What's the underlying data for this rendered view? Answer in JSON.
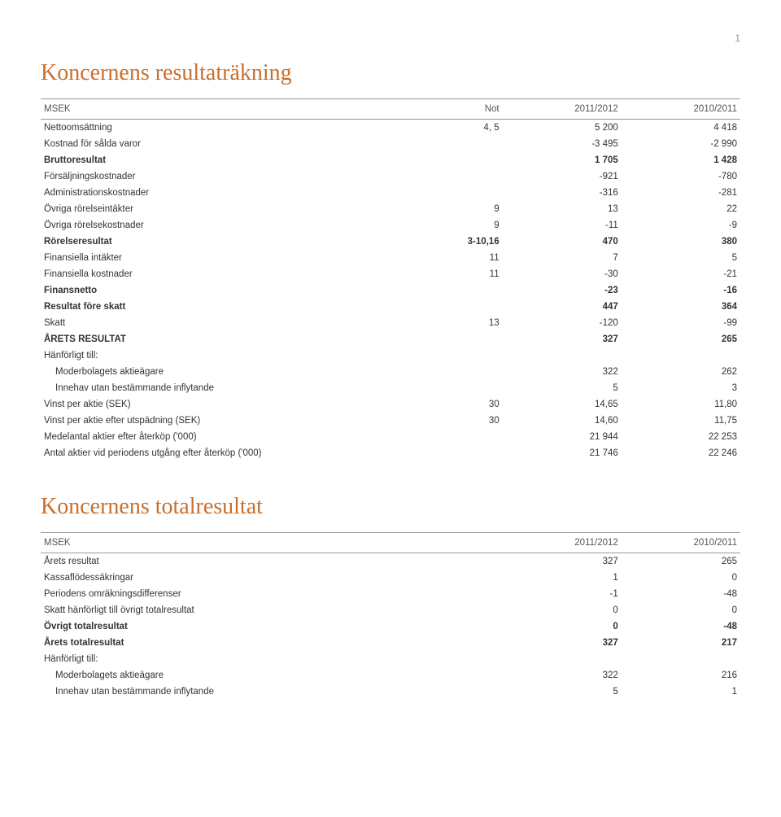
{
  "page_number": "1",
  "colors": {
    "heading": "#c96f2c",
    "text": "#333333",
    "rule": "#999999",
    "background": "#ffffff"
  },
  "fonts": {
    "heading_family": "Georgia, 'Times New Roman', serif",
    "body_family": "Verdana, Geneva, sans-serif",
    "heading_size_pt": 28,
    "body_size_pt": 11.5
  },
  "section1": {
    "title": "Koncernens resultaträkning",
    "columns": [
      "MSEK",
      "Not",
      "2011/2012",
      "2010/2011"
    ],
    "rows": [
      {
        "label": "Nettoomsättning",
        "not": "4, 5",
        "y1": "5 200",
        "y2": "4 418",
        "bold": false
      },
      {
        "label": "Kostnad för sålda varor",
        "not": "",
        "y1": "-3 495",
        "y2": "-2 990",
        "bold": false
      },
      {
        "label": "Bruttoresultat",
        "not": "",
        "y1": "1 705",
        "y2": "1 428",
        "bold": true
      },
      {
        "label": "Försäljningskostnader",
        "not": "",
        "y1": "-921",
        "y2": "-780",
        "bold": false
      },
      {
        "label": "Administrationskostnader",
        "not": "",
        "y1": "-316",
        "y2": "-281",
        "bold": false
      },
      {
        "label": "Övriga rörelseintäkter",
        "not": "9",
        "y1": "13",
        "y2": "22",
        "bold": false
      },
      {
        "label": "Övriga rörelsekostnader",
        "not": "9",
        "y1": "-11",
        "y2": "-9",
        "bold": false
      },
      {
        "label": "Rörelseresultat",
        "not": "3-10,16",
        "y1": "470",
        "y2": "380",
        "bold": true
      },
      {
        "label": "Finansiella intäkter",
        "not": "11",
        "y1": "7",
        "y2": "5",
        "bold": false
      },
      {
        "label": "Finansiella kostnader",
        "not": "11",
        "y1": "-30",
        "y2": "-21",
        "bold": false
      },
      {
        "label": "Finansnetto",
        "not": "",
        "y1": "-23",
        "y2": "-16",
        "bold": true
      },
      {
        "label": "Resultat före skatt",
        "not": "",
        "y1": "447",
        "y2": "364",
        "bold": true
      },
      {
        "label": "Skatt",
        "not": "13",
        "y1": "-120",
        "y2": "-99",
        "bold": false
      },
      {
        "label": "ÅRETS RESULTAT",
        "not": "",
        "y1": "327",
        "y2": "265",
        "bold": true
      },
      {
        "label": "Hänförligt till:",
        "not": "",
        "y1": "",
        "y2": "",
        "bold": false
      },
      {
        "label": "Moderbolagets aktieägare",
        "not": "",
        "y1": "322",
        "y2": "262",
        "bold": false,
        "indent": true
      },
      {
        "label": "Innehav utan bestämmande inflytande",
        "not": "",
        "y1": "5",
        "y2": "3",
        "bold": false,
        "indent": true
      },
      {
        "label": "Vinst per aktie (SEK)",
        "not": "30",
        "y1": "14,65",
        "y2": "11,80",
        "bold": false
      },
      {
        "label": "Vinst per aktie efter utspädning (SEK)",
        "not": "30",
        "y1": "14,60",
        "y2": "11,75",
        "bold": false
      },
      {
        "label": "Medelantal aktier efter återköp ('000)",
        "not": "",
        "y1": "21 944",
        "y2": "22 253",
        "bold": false
      },
      {
        "label": "Antal aktier vid periodens utgång efter återköp ('000)",
        "not": "",
        "y1": "21 746",
        "y2": "22 246",
        "bold": false
      }
    ]
  },
  "section2": {
    "title": "Koncernens totalresultat",
    "columns": [
      "MSEK",
      "2011/2012",
      "2010/2011"
    ],
    "rows": [
      {
        "label": "Årets resultat",
        "y1": "327",
        "y2": "265",
        "bold": false
      },
      {
        "label": "Kassaflödessäkringar",
        "y1": "1",
        "y2": "0",
        "bold": false
      },
      {
        "label": "Periodens omräkningsdifferenser",
        "y1": "-1",
        "y2": "-48",
        "bold": false
      },
      {
        "label": "Skatt hänförligt till övrigt totalresultat",
        "y1": "0",
        "y2": "0",
        "bold": false
      },
      {
        "label": "Övrigt totalresultat",
        "y1": "0",
        "y2": "-48",
        "bold": true
      },
      {
        "label": "Årets totalresultat",
        "y1": "327",
        "y2": "217",
        "bold": true
      },
      {
        "label": "Hänförligt till:",
        "y1": "",
        "y2": "",
        "bold": false
      },
      {
        "label": "Moderbolagets aktieägare",
        "y1": "322",
        "y2": "216",
        "bold": false,
        "indent": true
      },
      {
        "label": "Innehav utan bestämmande inflytande",
        "y1": "5",
        "y2": "1",
        "bold": false,
        "indent": true
      }
    ]
  }
}
